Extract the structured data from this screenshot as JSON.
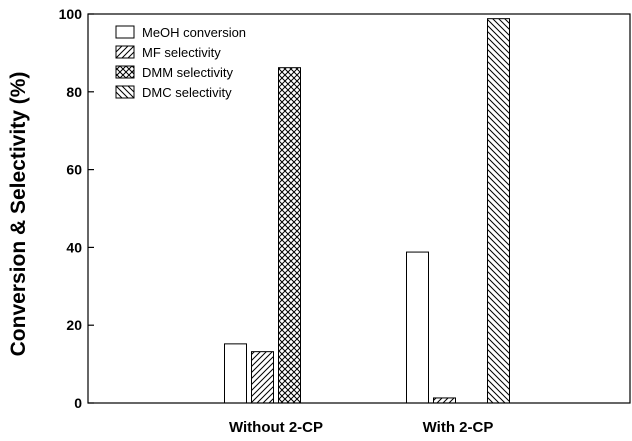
{
  "chart_data": {
    "type": "bar",
    "categories": [
      "Without 2-CP",
      "With 2-CP"
    ],
    "series": [
      {
        "name": "MeOH conversion",
        "values": [
          15.2,
          38.8
        ],
        "pattern": "none"
      },
      {
        "name": "MF selectivity",
        "values": [
          13.2,
          1.3
        ],
        "pattern": "diagonal-up"
      },
      {
        "name": "DMM selectivity",
        "values": [
          86.2,
          0
        ],
        "pattern": "crosshatch"
      },
      {
        "name": "DMC selectivity",
        "values": [
          0,
          98.8
        ],
        "pattern": "diagonal-down"
      }
    ],
    "title": "",
    "xlabel": "",
    "ylabel": "Conversion & Selectivity (%)",
    "ylim": [
      0,
      100
    ],
    "yticks": [
      0,
      20,
      40,
      60,
      80,
      100
    ],
    "grid": false,
    "legend_position": "top-left"
  }
}
